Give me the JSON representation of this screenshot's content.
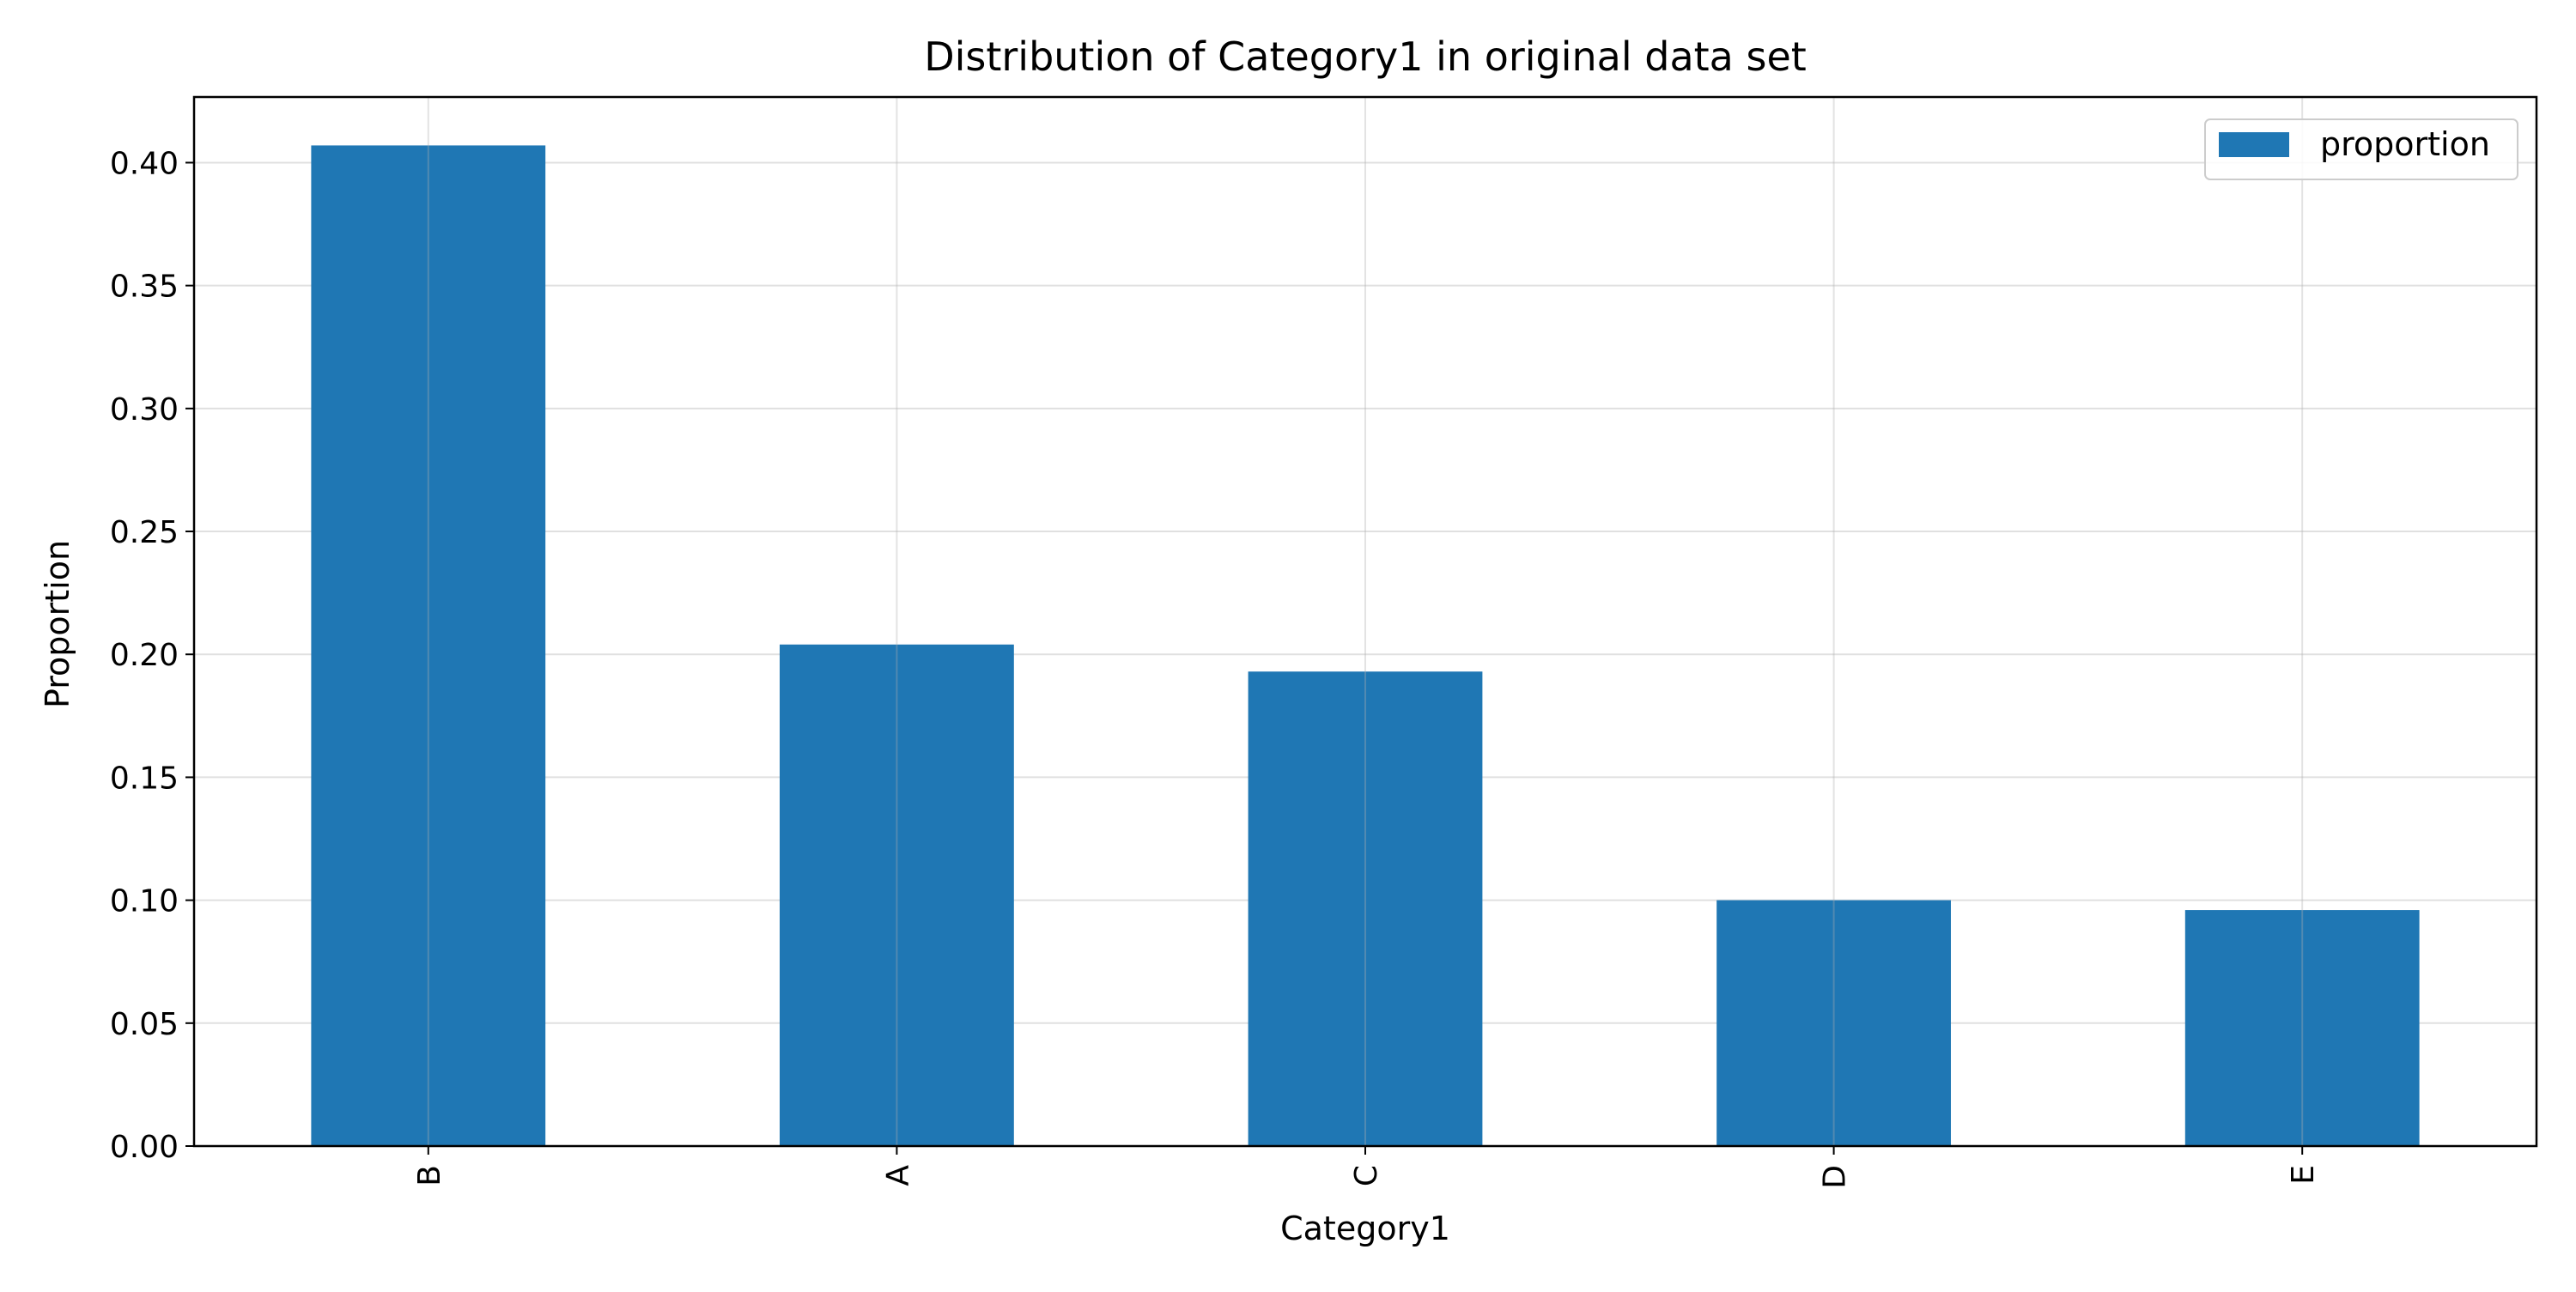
{
  "chart_data": {
    "type": "bar",
    "title": "Distribution of Category1 in original data set",
    "xlabel": "Category1",
    "ylabel": "Proportion",
    "categories": [
      "B",
      "A",
      "C",
      "D",
      "E"
    ],
    "series": [
      {
        "name": "proportion",
        "values": [
          0.407,
          0.204,
          0.193,
          0.1,
          0.096
        ]
      }
    ],
    "ylim": [
      0,
      0.4267
    ],
    "yticks": [
      "0.00",
      "0.05",
      "0.10",
      "0.15",
      "0.20",
      "0.25",
      "0.30",
      "0.35",
      "0.40"
    ],
    "grid": true,
    "legend_position": "top-right",
    "bar_color": "#1f77b4",
    "grid_color": "#e0e0e0"
  }
}
